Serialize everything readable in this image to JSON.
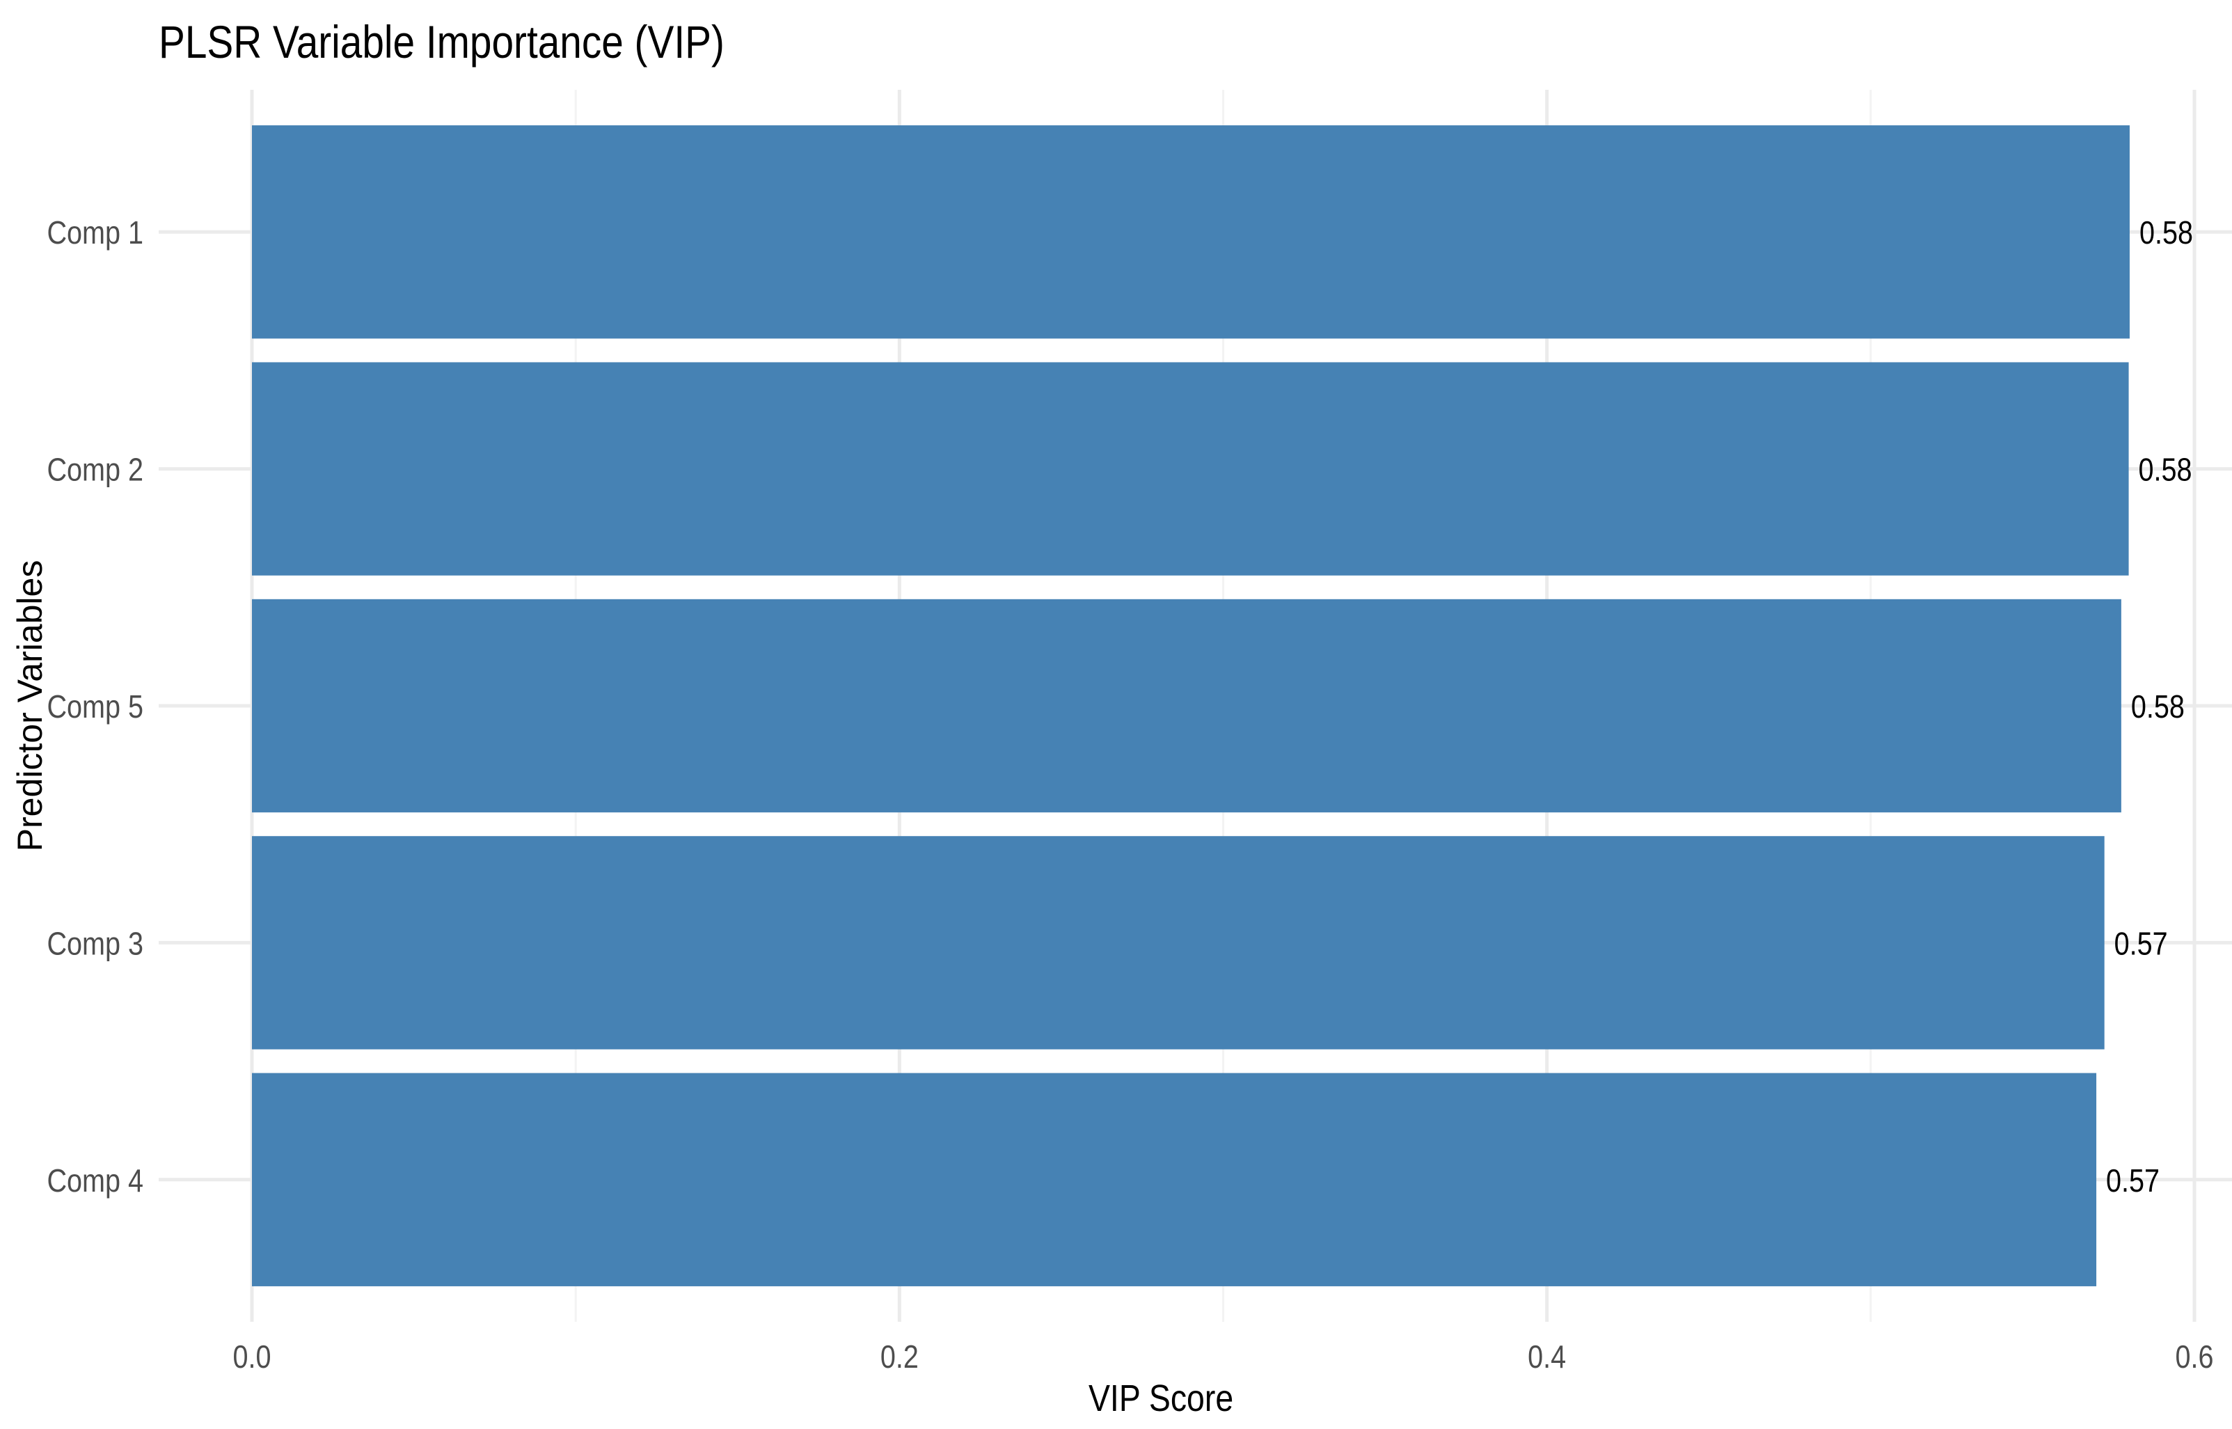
{
  "chart_data": {
    "type": "bar",
    "orientation": "horizontal",
    "title": "PLSR Variable Importance (VIP)",
    "xlabel": "VIP Score",
    "ylabel": "Predictor Variables",
    "categories": [
      "Comp 1",
      "Comp 2",
      "Comp 5",
      "Comp 3",
      "Comp 4"
    ],
    "values": [
      0.58,
      0.5797,
      0.5774,
      0.5722,
      0.5697
    ],
    "data_labels": [
      "0.58",
      "0.58",
      "0.58",
      "0.57",
      "0.57"
    ],
    "xlim": [
      0,
      0.6
    ],
    "x_ticks": [
      0.0,
      0.2,
      0.4,
      0.6
    ],
    "x_tick_labels": [
      "0.0",
      "0.2",
      "0.4",
      "0.6"
    ],
    "x_minor_ticks": [
      0.1,
      0.3,
      0.5
    ],
    "grid": true,
    "legend": null,
    "colors": {
      "bar": "#4682B4",
      "grid_major": "#EBEBEB",
      "grid_minor": "#F3F3F3",
      "axis_text": "#4D4D4D",
      "title_text": "#000000",
      "label_text": "#000000",
      "background": "#FFFFFF"
    }
  }
}
